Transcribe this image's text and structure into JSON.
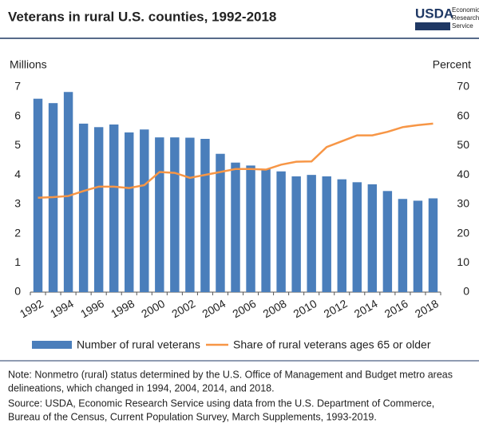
{
  "logo": {
    "name": "USDA",
    "lines": [
      "Economic",
      "Research",
      "Service"
    ]
  },
  "chart_data": {
    "type": "bar",
    "title": "Veterans in rural U.S. counties, 1992-2018",
    "ylabel": "Millions",
    "y2label": "Percent",
    "categories": [
      "1992",
      null,
      "1994",
      null,
      "1996",
      null,
      "1998",
      null,
      "2000",
      null,
      "2002",
      null,
      "2004",
      null,
      "2006",
      null,
      "2008",
      null,
      "2010",
      null,
      "2012",
      null,
      "2014",
      null,
      "2016",
      null,
      "2018"
    ],
    "series": [
      {
        "name": "Number of rural veterans",
        "type": "bar",
        "color": "#4a7ebb",
        "values": [
          6.6,
          6.45,
          6.83,
          5.75,
          5.63,
          5.72,
          5.45,
          5.55,
          5.28,
          5.28,
          5.27,
          5.23,
          4.72,
          4.42,
          4.32,
          4.2,
          4.12,
          3.95,
          4.0,
          3.95,
          3.85,
          3.75,
          3.68,
          3.45,
          3.18,
          3.12,
          3.2
        ]
      },
      {
        "name": "Share of rural veterans ages 65 or older",
        "type": "line",
        "axis": "y2",
        "color": "#f79646",
        "values": [
          32.2,
          32.4,
          32.8,
          34.5,
          36,
          36,
          35.5,
          36.5,
          41,
          40.7,
          39,
          40,
          41,
          42,
          42,
          41.8,
          43.5,
          44.5,
          44.6,
          49.5,
          51.5,
          53.5,
          53.5,
          54.7,
          56.3,
          57,
          57.5
        ]
      }
    ],
    "ylim": [
      0,
      7
    ],
    "yticks": [
      0,
      1,
      2,
      3,
      4,
      5,
      6,
      7
    ],
    "y2lim": [
      0,
      70
    ],
    "y2ticks": [
      0,
      10,
      20,
      30,
      40,
      50,
      60,
      70
    ],
    "grid": false,
    "note": [
      "Note: Nonmetro (rural) status determined by the U.S. Office of Management and Budget metro areas",
      "delineations, which changed in 1994, 2004, 2014, and 2018."
    ],
    "source": [
      "Source: USDA, Economic Research Service using data from the U.S. Department of Commerce,",
      "Bureau of the Census, Current Population Survey, March Supplements, 1993-2019."
    ]
  }
}
